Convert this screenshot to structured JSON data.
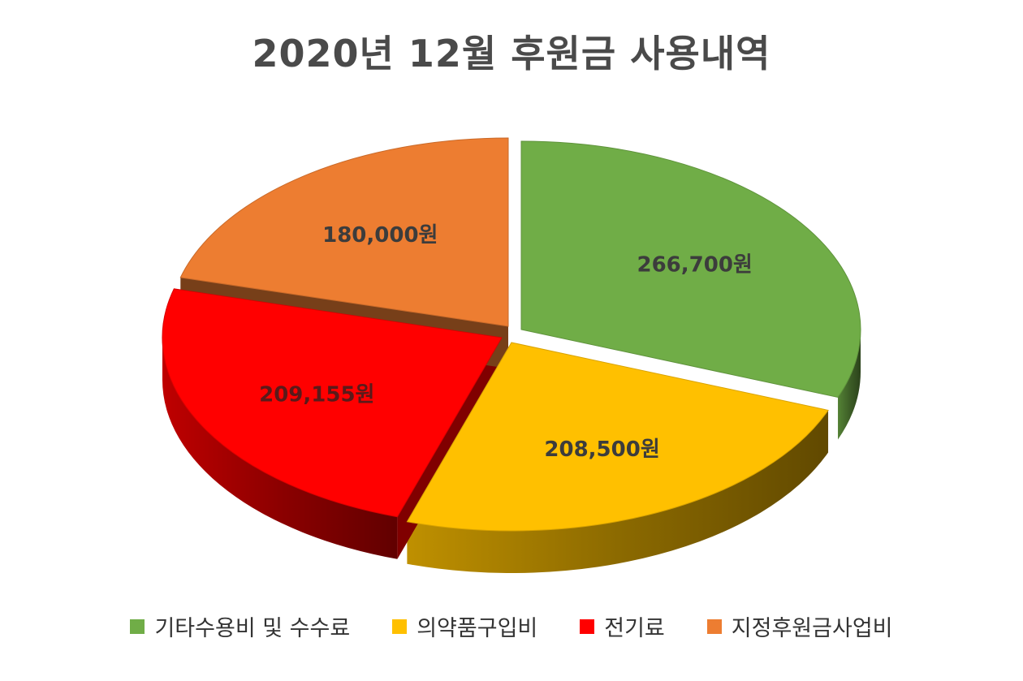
{
  "chart_data": {
    "type": "pie",
    "title": "2020년 12월 후원금 사용내역",
    "legend_position": "bottom",
    "slices": [
      {
        "name": "기타수용비 및 수수료",
        "value": 266700,
        "label": "266,700원",
        "color": "#70ad47"
      },
      {
        "name": "의약품구입비",
        "value": 208500,
        "label": "208,500원",
        "color": "#ffc000"
      },
      {
        "name": "전기료",
        "value": 209155,
        "label": "209,155원",
        "color": "#ff0000"
      },
      {
        "name": "지정후원금사업비",
        "value": 180000,
        "label": "180,000원",
        "color": "#ed7d31"
      }
    ]
  }
}
